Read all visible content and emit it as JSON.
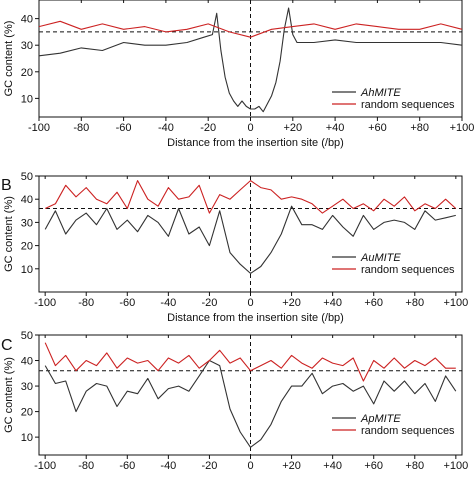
{
  "figure": {
    "panels": [
      "",
      "B",
      "C"
    ]
  },
  "chart_data": [
    {
      "type": "line",
      "panel": "",
      "xlabel": "Distance from the insertion site (/bp)",
      "ylabel": "GC content (%)",
      "xlim": [
        -100,
        100
      ],
      "ylim": [
        3,
        47
      ],
      "x_ticks": [
        -100,
        -80,
        -60,
        -40,
        -20,
        0,
        20,
        40,
        60,
        80,
        100
      ],
      "x_tick_labels": [
        "-100",
        "-80",
        "-60",
        "-40",
        "-20",
        "0",
        "+20",
        "+40",
        "+60",
        "+80",
        "+100"
      ],
      "y_ticks": [
        10,
        20,
        30,
        40
      ],
      "y_tick_labels": [
        "10",
        "20",
        "30",
        "40"
      ],
      "reference_lines": [
        {
          "axis": "y",
          "value": 35,
          "style": "dashed"
        },
        {
          "axis": "x",
          "value": 0,
          "style": "dashed"
        }
      ],
      "legend": {
        "placement": "bottom-right"
      },
      "grid": false,
      "series": [
        {
          "name": "AhMITE",
          "color": "#333333",
          "x": [
            -100,
            -90,
            -80,
            -70,
            -60,
            -50,
            -40,
            -30,
            -22,
            -18,
            -16,
            -14,
            -12,
            -10,
            -8,
            -6,
            -4,
            -2,
            0,
            2,
            4,
            6,
            8,
            10,
            12,
            14,
            16,
            18,
            20,
            22,
            30,
            40,
            50,
            60,
            70,
            80,
            90,
            100
          ],
          "y": [
            26,
            27,
            29,
            28,
            31,
            30,
            30,
            31,
            33,
            34,
            42,
            28,
            18,
            12,
            9,
            7,
            9,
            7,
            6,
            6,
            7,
            5,
            8,
            11,
            16,
            24,
            36,
            44,
            34,
            31,
            31,
            32,
            31,
            31,
            31,
            31,
            31,
            30
          ]
        },
        {
          "name": "random sequences",
          "color": "#cc2222",
          "x": [
            -100,
            -90,
            -80,
            -70,
            -60,
            -50,
            -40,
            -30,
            -20,
            -10,
            0,
            10,
            20,
            30,
            40,
            50,
            60,
            70,
            80,
            90,
            100
          ],
          "y": [
            37,
            39,
            36,
            38,
            36,
            37,
            35,
            36,
            38,
            35,
            33,
            36,
            37,
            38,
            36,
            38,
            37,
            36,
            36,
            38,
            36
          ]
        }
      ]
    },
    {
      "type": "line",
      "panel": "B",
      "xlabel": "Distance from the insertion site (/bp)",
      "ylabel": "GC content (%)",
      "xlim": [
        -103,
        103
      ],
      "ylim": [
        0,
        50
      ],
      "x_ticks": [
        -100,
        -80,
        -60,
        -40,
        -20,
        0,
        20,
        40,
        60,
        80,
        100
      ],
      "x_tick_labels": [
        "-100",
        "-80",
        "-60",
        "-40",
        "-20",
        "0",
        "+20",
        "+40",
        "+60",
        "+80",
        "+100"
      ],
      "y_ticks": [
        10,
        20,
        30,
        40,
        50
      ],
      "y_tick_labels": [
        "10",
        "20",
        "30",
        "40",
        "50"
      ],
      "reference_lines": [
        {
          "axis": "y",
          "value": 36,
          "style": "dashed"
        },
        {
          "axis": "x",
          "value": 0,
          "style": "dashed"
        }
      ],
      "legend": {
        "placement": "bottom-right"
      },
      "grid": false,
      "series": [
        {
          "name": "AuMITE",
          "color": "#333333",
          "x": [
            -100,
            -95,
            -90,
            -85,
            -80,
            -75,
            -70,
            -65,
            -60,
            -55,
            -50,
            -45,
            -40,
            -35,
            -30,
            -25,
            -20,
            -15,
            -10,
            -5,
            0,
            5,
            10,
            15,
            20,
            25,
            30,
            35,
            40,
            45,
            50,
            55,
            60,
            65,
            70,
            75,
            80,
            85,
            90,
            95,
            100
          ],
          "y": [
            27,
            35,
            25,
            31,
            34,
            29,
            36,
            27,
            31,
            26,
            33,
            30,
            24,
            36,
            25,
            28,
            20,
            35,
            17,
            12,
            8,
            11,
            17,
            25,
            37,
            29,
            29,
            27,
            33,
            28,
            24,
            33,
            27,
            30,
            31,
            30,
            27,
            35,
            31,
            32,
            33
          ]
        },
        {
          "name": "random sequences",
          "color": "#cc2222",
          "x": [
            -100,
            -95,
            -90,
            -85,
            -80,
            -75,
            -70,
            -65,
            -60,
            -55,
            -50,
            -45,
            -40,
            -35,
            -30,
            -25,
            -20,
            -15,
            -10,
            -5,
            0,
            5,
            10,
            15,
            20,
            25,
            30,
            35,
            40,
            45,
            50,
            55,
            60,
            65,
            70,
            75,
            80,
            85,
            90,
            95,
            100
          ],
          "y": [
            36,
            38,
            46,
            41,
            45,
            40,
            38,
            43,
            36,
            48,
            40,
            37,
            45,
            40,
            41,
            46,
            34,
            42,
            40,
            44,
            48,
            45,
            44,
            40,
            41,
            40,
            38,
            34,
            37,
            40,
            36,
            38,
            35,
            40,
            37,
            41,
            35,
            38,
            36,
            40,
            36
          ]
        }
      ]
    },
    {
      "type": "line",
      "panel": "C",
      "xlabel": "",
      "ylabel": "GC content (%)",
      "xlim": [
        -103,
        103
      ],
      "ylim": [
        3,
        50
      ],
      "x_ticks": [
        -100,
        -80,
        -60,
        -40,
        -20,
        0,
        20,
        40,
        60,
        80,
        100
      ],
      "x_tick_labels": [
        "-100",
        "-80",
        "-60",
        "-40",
        "-20",
        "0",
        "+20",
        "+40",
        "+60",
        "+80",
        "+100"
      ],
      "y_ticks": [
        10,
        20,
        30,
        40,
        50
      ],
      "y_tick_labels": [
        "10",
        "20",
        "30",
        "40",
        "50"
      ],
      "reference_lines": [
        {
          "axis": "y",
          "value": 36,
          "style": "dashed"
        },
        {
          "axis": "x",
          "value": 0,
          "style": "dashed"
        }
      ],
      "legend": {
        "placement": "bottom-right"
      },
      "grid": false,
      "series": [
        {
          "name": "ApMITE",
          "color": "#333333",
          "x": [
            -100,
            -95,
            -90,
            -85,
            -80,
            -75,
            -70,
            -65,
            -60,
            -55,
            -50,
            -45,
            -40,
            -35,
            -30,
            -25,
            -20,
            -15,
            -10,
            -5,
            0,
            5,
            10,
            15,
            20,
            25,
            30,
            35,
            40,
            45,
            50,
            55,
            60,
            65,
            70,
            75,
            80,
            85,
            90,
            95,
            100
          ],
          "y": [
            38,
            31,
            32,
            20,
            28,
            31,
            30,
            22,
            28,
            27,
            33,
            25,
            29,
            30,
            28,
            34,
            40,
            38,
            21,
            12,
            6,
            9,
            15,
            24,
            30,
            30,
            35,
            27,
            30,
            31,
            28,
            30,
            23,
            32,
            28,
            32,
            27,
            31,
            24,
            34,
            28
          ]
        },
        {
          "name": "random sequences",
          "color": "#cc2222",
          "x": [
            -100,
            -95,
            -90,
            -85,
            -80,
            -75,
            -70,
            -65,
            -60,
            -55,
            -50,
            -45,
            -40,
            -35,
            -30,
            -25,
            -20,
            -15,
            -10,
            -5,
            0,
            5,
            10,
            15,
            20,
            25,
            30,
            35,
            40,
            45,
            50,
            55,
            60,
            65,
            70,
            75,
            80,
            85,
            90,
            95,
            100
          ],
          "y": [
            47,
            38,
            42,
            36,
            40,
            38,
            43,
            37,
            41,
            39,
            40,
            36,
            41,
            39,
            42,
            37,
            40,
            44,
            39,
            41,
            36,
            38,
            40,
            37,
            42,
            39,
            37,
            41,
            39,
            38,
            41,
            32,
            40,
            37,
            41,
            37,
            40,
            38,
            41,
            37,
            37
          ]
        }
      ]
    }
  ]
}
